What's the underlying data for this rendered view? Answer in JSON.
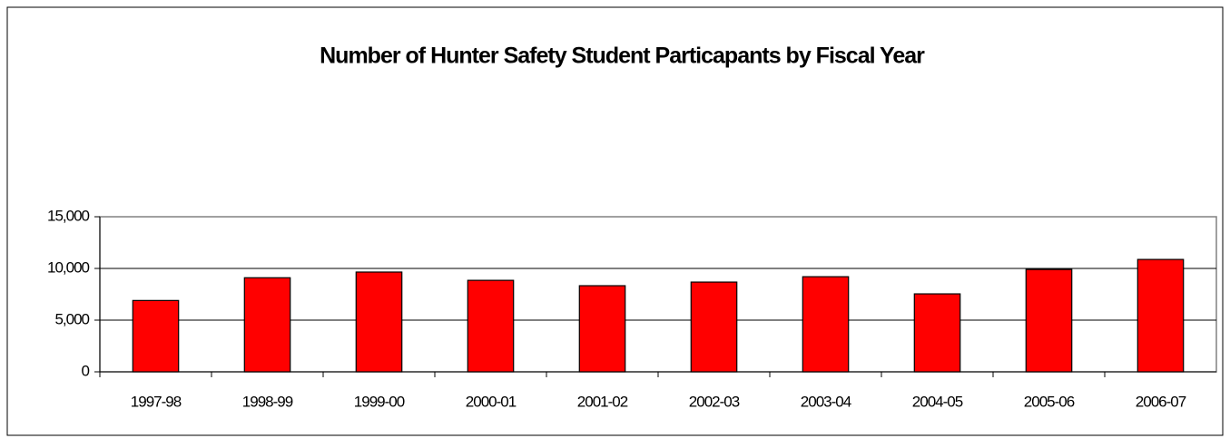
{
  "chart_data": {
    "type": "bar",
    "title": "Number of Hunter Safety  Student Particapants by Fiscal Year",
    "categories": [
      "1997-98",
      "1998-99",
      "1999-00",
      "2000-01",
      "2001-02",
      "2002-03",
      "2003-04",
      "2004-05",
      "2005-06",
      "2006-07"
    ],
    "values": [
      6900,
      9100,
      9650,
      8850,
      8330,
      8680,
      9200,
      7540,
      9900,
      10870
    ],
    "color": "#ff0000",
    "ylim": [
      0,
      15000
    ],
    "yticks": [
      0,
      {
        "value": 5000,
        "label": "5,000"
      },
      {
        "value": 10000,
        "label": "10,000"
      },
      {
        "value": 15000,
        "label": "15,000"
      }
    ],
    "grid": true
  }
}
